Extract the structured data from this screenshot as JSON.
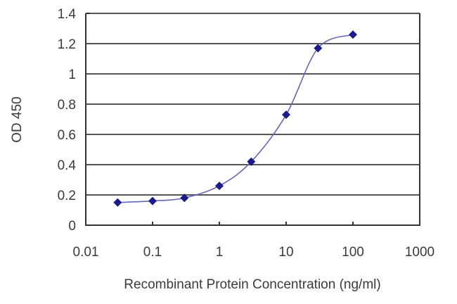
{
  "chart_data": {
    "type": "line",
    "title": "",
    "xlabel": "Recombinant Protein Concentration (ng/ml)",
    "ylabel": "OD 450",
    "xscale": "log",
    "xlim": [
      0.01,
      1000
    ],
    "ylim": [
      0,
      1.4
    ],
    "x_ticks": [
      "0.01",
      "0.1",
      "1",
      "10",
      "100",
      "1000"
    ],
    "y_ticks": [
      "0",
      "0.2",
      "0.4",
      "0.6",
      "0.8",
      "1",
      "1.2",
      "1.4"
    ],
    "grid": "horizontal",
    "legend": "none",
    "series": [
      {
        "name": "OD 450",
        "color": "#1a1a8c",
        "marker": "diamond",
        "smooth": true,
        "x": [
          0.03,
          0.1,
          0.3,
          1,
          3,
          10,
          30,
          100
        ],
        "values": [
          0.15,
          0.16,
          0.18,
          0.26,
          0.42,
          0.73,
          1.17,
          1.26
        ]
      }
    ]
  },
  "colors": {
    "grid": "#555555",
    "axis": "#333333",
    "line": "#6666bb",
    "marker": "#1a1a8c"
  }
}
